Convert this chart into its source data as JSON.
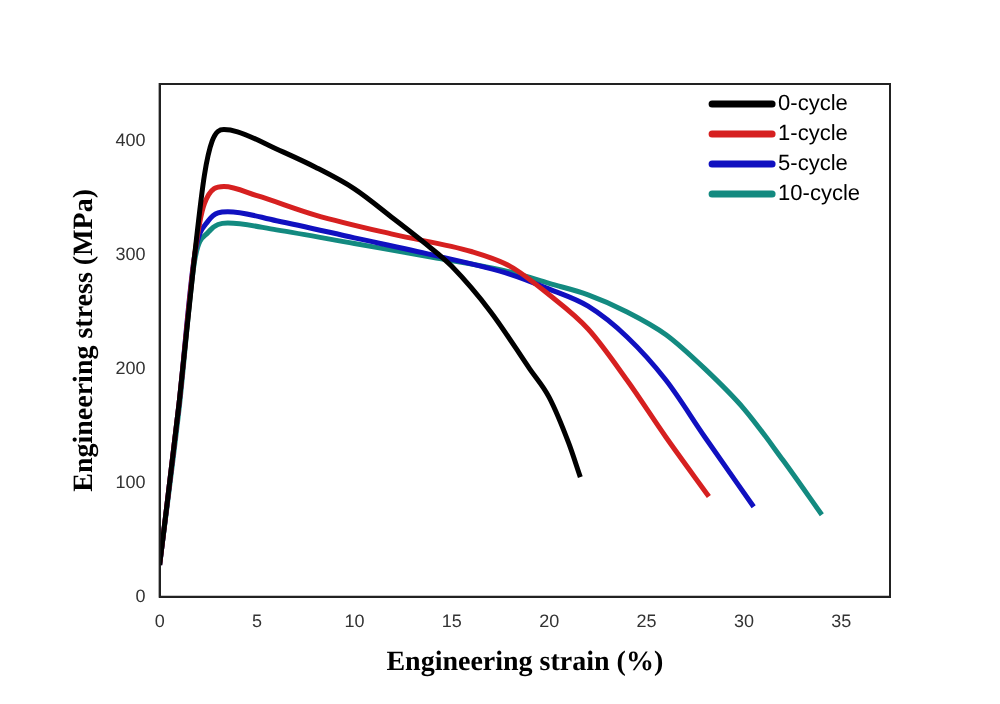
{
  "chart_data": {
    "type": "line",
    "xlabel": "Engineering strain (%)",
    "ylabel": "Engineering stress (MPa)",
    "xlim": [
      0,
      37.5
    ],
    "ylim": [
      0,
      450
    ],
    "xticks": [
      0,
      5,
      10,
      15,
      20,
      25,
      30,
      35
    ],
    "yticks": [
      0,
      100,
      200,
      300,
      400
    ],
    "grid": false,
    "legend": "top right",
    "marker": "none",
    "line_style": "solid",
    "series": [
      {
        "name": "0-cycle",
        "color": "#000000",
        "x": [
          0,
          1,
          1.8,
          2.3,
          2.7,
          3.3,
          4,
          6,
          8,
          10,
          12,
          14,
          15,
          17,
          19,
          20,
          21,
          21.6
        ],
        "values": [
          28,
          170,
          300,
          370,
          400,
          410,
          408,
          393,
          377,
          358,
          332,
          305,
          290,
          250,
          200,
          175,
          135,
          105
        ]
      },
      {
        "name": "1-cycle",
        "color": "#d62020",
        "x": [
          0,
          1,
          1.8,
          2.3,
          3.3,
          5,
          8,
          12,
          16,
          18,
          20,
          22,
          24,
          26,
          28.2
        ],
        "values": [
          28,
          170,
          300,
          345,
          360,
          352,
          335,
          318,
          303,
          290,
          265,
          235,
          190,
          140,
          88
        ]
      },
      {
        "name": "5-cycle",
        "color": "#1010c0",
        "x": [
          0,
          1,
          1.8,
          2.5,
          3.5,
          6,
          10,
          14,
          18,
          20,
          22,
          24,
          26,
          28,
          30.5
        ],
        "values": [
          28,
          170,
          300,
          330,
          338,
          330,
          315,
          300,
          283,
          270,
          255,
          228,
          190,
          140,
          79
        ]
      },
      {
        "name": "10-cycle",
        "color": "#138a80",
        "x": [
          0,
          1,
          1.8,
          2.5,
          3.5,
          6,
          10,
          14,
          18,
          20,
          22,
          24,
          26,
          28,
          30,
          32,
          34
        ],
        "values": [
          28,
          165,
          295,
          320,
          328,
          322,
          310,
          298,
          285,
          275,
          265,
          250,
          230,
          200,
          165,
          120,
          72
        ]
      }
    ]
  }
}
